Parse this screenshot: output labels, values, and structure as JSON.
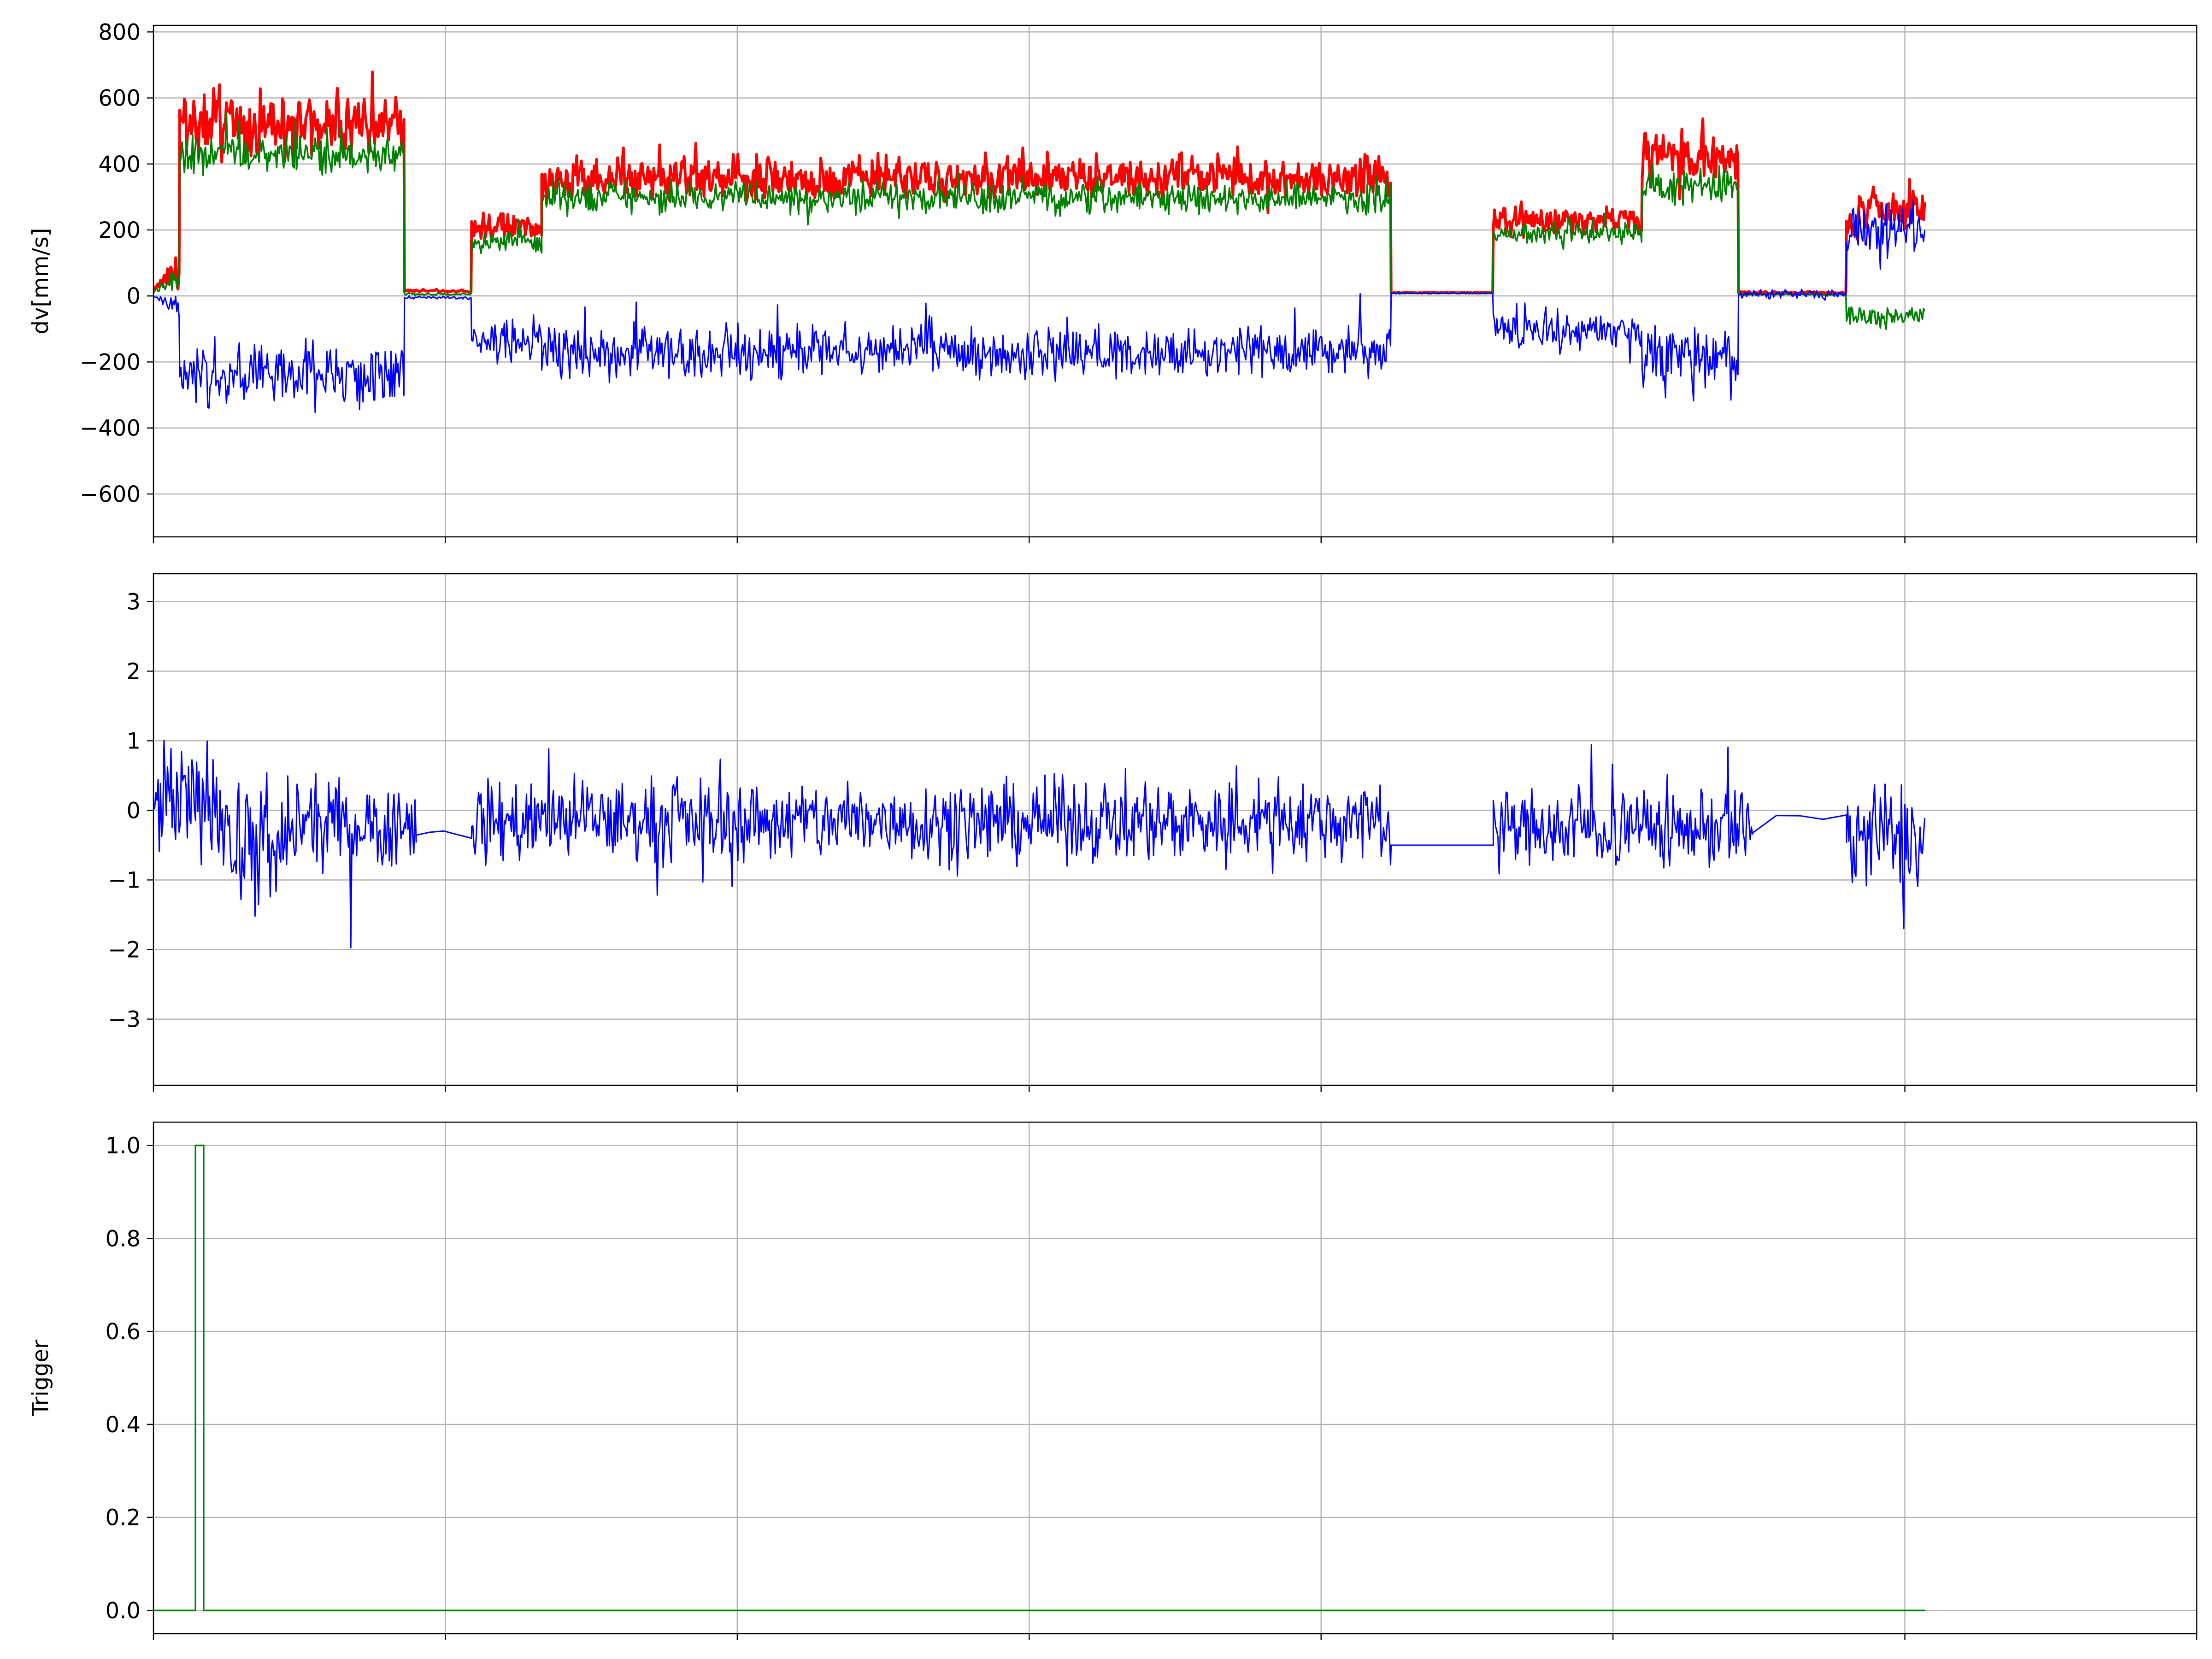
{
  "colors": {
    "red": "#ff0000",
    "green": "#008000",
    "blue": "#0000ff",
    "grid": "#b0b0b0",
    "axis": "#000000"
  },
  "chart_data": [
    {
      "type": "line",
      "ylabel": "dv[mm/s]",
      "ylim": [
        -730,
        820
      ],
      "yticks": [
        800,
        600,
        400,
        200,
        0,
        -200,
        -400,
        -600
      ],
      "ytick_labels": [
        "800",
        "600",
        "400",
        "200",
        "0",
        "−200",
        "−400",
        "−600"
      ],
      "xlim": [
        0,
        3500
      ],
      "xticks": [
        0,
        500,
        1000,
        1500,
        2000,
        2500,
        3000,
        3500
      ],
      "xtick_labels": [
        "",
        "",
        "",
        "",
        "",
        "",
        "",
        ""
      ],
      "grid": true,
      "segments": [
        {
          "x0": 0,
          "x1": 45,
          "red": 20,
          "green": 10,
          "blue": 0,
          "ramp": true
        },
        {
          "x0": 45,
          "x1": 430,
          "red": 520,
          "green": 430,
          "blue": -240,
          "red_noise": 130,
          "green_noise": 90,
          "blue_noise": 130
        },
        {
          "x0": 430,
          "x1": 545,
          "red": 15,
          "green": 5,
          "blue": -5,
          "red_noise": 6,
          "green_noise": 6,
          "blue_noise": 8
        },
        {
          "x0": 545,
          "x1": 665,
          "red": 210,
          "green": 160,
          "blue": -130,
          "red_noise": 60,
          "green_noise": 50,
          "blue_noise": 90
        },
        {
          "x0": 665,
          "x1": 2120,
          "red": 360,
          "green": 300,
          "blue": -170,
          "red_noise": 90,
          "green_noise": 70,
          "blue_noise": 110
        },
        {
          "x0": 2120,
          "x1": 2295,
          "red": 10,
          "green": 8,
          "blue": 8,
          "red_noise": 2,
          "green_noise": 2,
          "blue_noise": 2
        },
        {
          "x0": 2295,
          "x1": 2550,
          "red": 230,
          "green": 190,
          "blue": -100,
          "red_noise": 60,
          "green_noise": 50,
          "blue_noise": 90
        },
        {
          "x0": 2550,
          "x1": 2715,
          "red": 420,
          "green": 330,
          "blue": -180,
          "red_noise": 110,
          "green_noise": 80,
          "blue_noise": 160
        },
        {
          "x0": 2715,
          "x1": 2900,
          "red": 10,
          "green": 5,
          "blue": 5,
          "red_noise": 6,
          "green_noise": 4,
          "blue_noise": 20
        },
        {
          "x0": 2900,
          "x1": 3035,
          "red": 250,
          "green": -60,
          "blue": 200,
          "red_noise": 110,
          "green_noise": 50,
          "blue_noise": 130
        }
      ],
      "series": [
        {
          "color": "red",
          "width": 6
        },
        {
          "color": "green",
          "width": 3.5
        },
        {
          "color": "blue",
          "width": 3
        }
      ]
    },
    {
      "type": "line",
      "ylabel": "",
      "ylim": [
        -3.95,
        3.4
      ],
      "yticks": [
        3,
        2,
        1,
        0,
        -1,
        -2,
        -3
      ],
      "ytick_labels": [
        "3",
        "2",
        "1",
        "0",
        "−1",
        "−2",
        "−3"
      ],
      "xlim": [
        0,
        3500
      ],
      "xticks": [
        0,
        500,
        1000,
        1500,
        2000,
        2500,
        3000,
        3500
      ],
      "xtick_labels": [
        "",
        "",
        "",
        "",
        "",
        "",
        "",
        ""
      ],
      "grid": true,
      "segments": [
        {
          "x0": 0,
          "x1": 130,
          "mean": 0.1,
          "noise": 1.2
        },
        {
          "x0": 130,
          "x1": 230,
          "mean": -0.6,
          "noise": 1.5
        },
        {
          "x0": 230,
          "x1": 450,
          "mean": -0.2,
          "noise": 0.9
        },
        {
          "x0": 450,
          "x1": 545,
          "mean": -0.35,
          "noise": 0.15,
          "sparse": true
        },
        {
          "x0": 545,
          "x1": 2120,
          "mean": -0.15,
          "noise": 0.85
        },
        {
          "x0": 2120,
          "x1": 2295,
          "mean": -0.5,
          "noise": 0.0,
          "sparse": true
        },
        {
          "x0": 2295,
          "x1": 2740,
          "mean": -0.25,
          "noise": 0.85
        },
        {
          "x0": 2740,
          "x1": 2900,
          "mean": -0.1,
          "noise": 0.2,
          "sparse": true
        },
        {
          "x0": 2900,
          "x1": 3035,
          "mean": -0.4,
          "noise": 1.25
        }
      ],
      "series": [
        {
          "color": "blue",
          "width": 3
        }
      ]
    },
    {
      "type": "line",
      "ylabel": "Trigger",
      "ylim": [
        -0.05,
        1.05
      ],
      "yticks": [
        1.0,
        0.8,
        0.6,
        0.4,
        0.2,
        0.0
      ],
      "ytick_labels": [
        "1.0",
        "0.8",
        "0.6",
        "0.4",
        "0.2",
        "0.0"
      ],
      "xlim": [
        0,
        3500
      ],
      "xticks": [
        0,
        500,
        1000,
        1500,
        2000,
        2500,
        3000,
        3500
      ],
      "xtick_labels": [
        "",
        "",
        "",
        "",
        "",
        "",
        "",
        ""
      ],
      "grid": true,
      "x": [
        0,
        72,
        72,
        86,
        86,
        3035
      ],
      "y": [
        0,
        0,
        1,
        1,
        0,
        0
      ],
      "series": [
        {
          "color": "green",
          "width": 3.5
        }
      ]
    }
  ]
}
